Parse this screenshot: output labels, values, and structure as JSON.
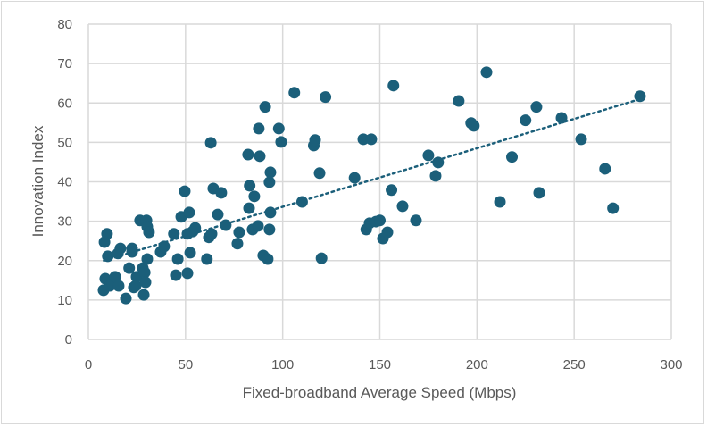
{
  "chart_data": {
    "type": "scatter",
    "title": "",
    "xlabel": "Fixed-broadband  Average Speed (Mbps)",
    "ylabel": "Innovation Index",
    "xlim": [
      0,
      300
    ],
    "ylim": [
      0,
      80
    ],
    "xticks": [
      0,
      50,
      100,
      150,
      200,
      250,
      300
    ],
    "yticks": [
      0,
      10,
      20,
      30,
      40,
      50,
      60,
      70,
      80
    ],
    "grid": true,
    "legend": "none",
    "marker_color": "#1b5f7a",
    "trendline": {
      "type": "linear",
      "slope": 0.1486,
      "intercept": 18.8,
      "x_range": [
        8,
        284
      ],
      "style": "dotted"
    },
    "points": [
      [
        7.8,
        12.5
      ],
      [
        8.7,
        15.4
      ],
      [
        9.6,
        26.8
      ],
      [
        8.3,
        24.7
      ],
      [
        10,
        21.1
      ],
      [
        11,
        13.6
      ],
      [
        12.4,
        14.1
      ],
      [
        13.8,
        15.9
      ],
      [
        15.2,
        21.8
      ],
      [
        16.5,
        23.1
      ],
      [
        15.6,
        13.6
      ],
      [
        19.3,
        10.4
      ],
      [
        21,
        18.1
      ],
      [
        22.5,
        23.1
      ],
      [
        22.5,
        22.2
      ],
      [
        23.4,
        13.2
      ],
      [
        24.8,
        15.9
      ],
      [
        24.3,
        13.6
      ],
      [
        26.6,
        30.2
      ],
      [
        28,
        18.1
      ],
      [
        28.5,
        11.3
      ],
      [
        29.9,
        30.2
      ],
      [
        30.3,
        28.6
      ],
      [
        31.2,
        27.2
      ],
      [
        30.3,
        20.4
      ],
      [
        29,
        17
      ],
      [
        29.4,
        14.5
      ],
      [
        37.2,
        22.2
      ],
      [
        39,
        23.6
      ],
      [
        44,
        26.8
      ],
      [
        45,
        16.3
      ],
      [
        46,
        20.4
      ],
      [
        47.8,
        31.1
      ],
      [
        49.6,
        37.6
      ],
      [
        51,
        16.8
      ],
      [
        51,
        26.8
      ],
      [
        51.9,
        32.2
      ],
      [
        53.7,
        27.4
      ],
      [
        52.4,
        22
      ],
      [
        55,
        28.3
      ],
      [
        61,
        20.4
      ],
      [
        63,
        49.9
      ],
      [
        62,
        25.9
      ],
      [
        63.4,
        26.8
      ],
      [
        64.3,
        38.3
      ],
      [
        66.6,
        31.7
      ],
      [
        68.4,
        37.2
      ],
      [
        70.7,
        29
      ],
      [
        76.7,
        24.3
      ],
      [
        77.6,
        27.2
      ],
      [
        82.2,
        46.9
      ],
      [
        83,
        39
      ],
      [
        82.7,
        33.3
      ],
      [
        84.5,
        27.9
      ],
      [
        85.4,
        36.3
      ],
      [
        87.7,
        53.5
      ],
      [
        88.2,
        46.5
      ],
      [
        87.3,
        28.8
      ],
      [
        90,
        21.3
      ],
      [
        91,
        59
      ],
      [
        92.3,
        20.4
      ],
      [
        93.2,
        39.9
      ],
      [
        93.7,
        42.4
      ],
      [
        93.7,
        32.2
      ],
      [
        93.2,
        27.9
      ],
      [
        98,
        53.5
      ],
      [
        99.2,
        50.1
      ],
      [
        106,
        62.6
      ],
      [
        110,
        34.9
      ],
      [
        116,
        49.2
      ],
      [
        116.7,
        50.6
      ],
      [
        119,
        42.2
      ],
      [
        120,
        20.6
      ],
      [
        122,
        61.5
      ],
      [
        137,
        41
      ],
      [
        141.5,
        50.8
      ],
      [
        145.6,
        50.8
      ],
      [
        143,
        27.9
      ],
      [
        144.7,
        29.5
      ],
      [
        148,
        29.9
      ],
      [
        150,
        30.2
      ],
      [
        151.6,
        25.6
      ],
      [
        153.9,
        27.2
      ],
      [
        156,
        37.9
      ],
      [
        157,
        64.4
      ],
      [
        161.7,
        33.8
      ],
      [
        168.6,
        30.2
      ],
      [
        175,
        46.7
      ],
      [
        178.7,
        41.5
      ],
      [
        180,
        44.9
      ],
      [
        190.6,
        60.5
      ],
      [
        197,
        54.9
      ],
      [
        198.4,
        54.2
      ],
      [
        204.9,
        67.8
      ],
      [
        211.8,
        34.9
      ],
      [
        218,
        46.3
      ],
      [
        225,
        55.6
      ],
      [
        230.6,
        59
      ],
      [
        232,
        37.2
      ],
      [
        243.5,
        56.2
      ],
      [
        253.6,
        50.8
      ],
      [
        265.9,
        43.3
      ],
      [
        270,
        33.3
      ],
      [
        283.9,
        61.7
      ]
    ]
  }
}
